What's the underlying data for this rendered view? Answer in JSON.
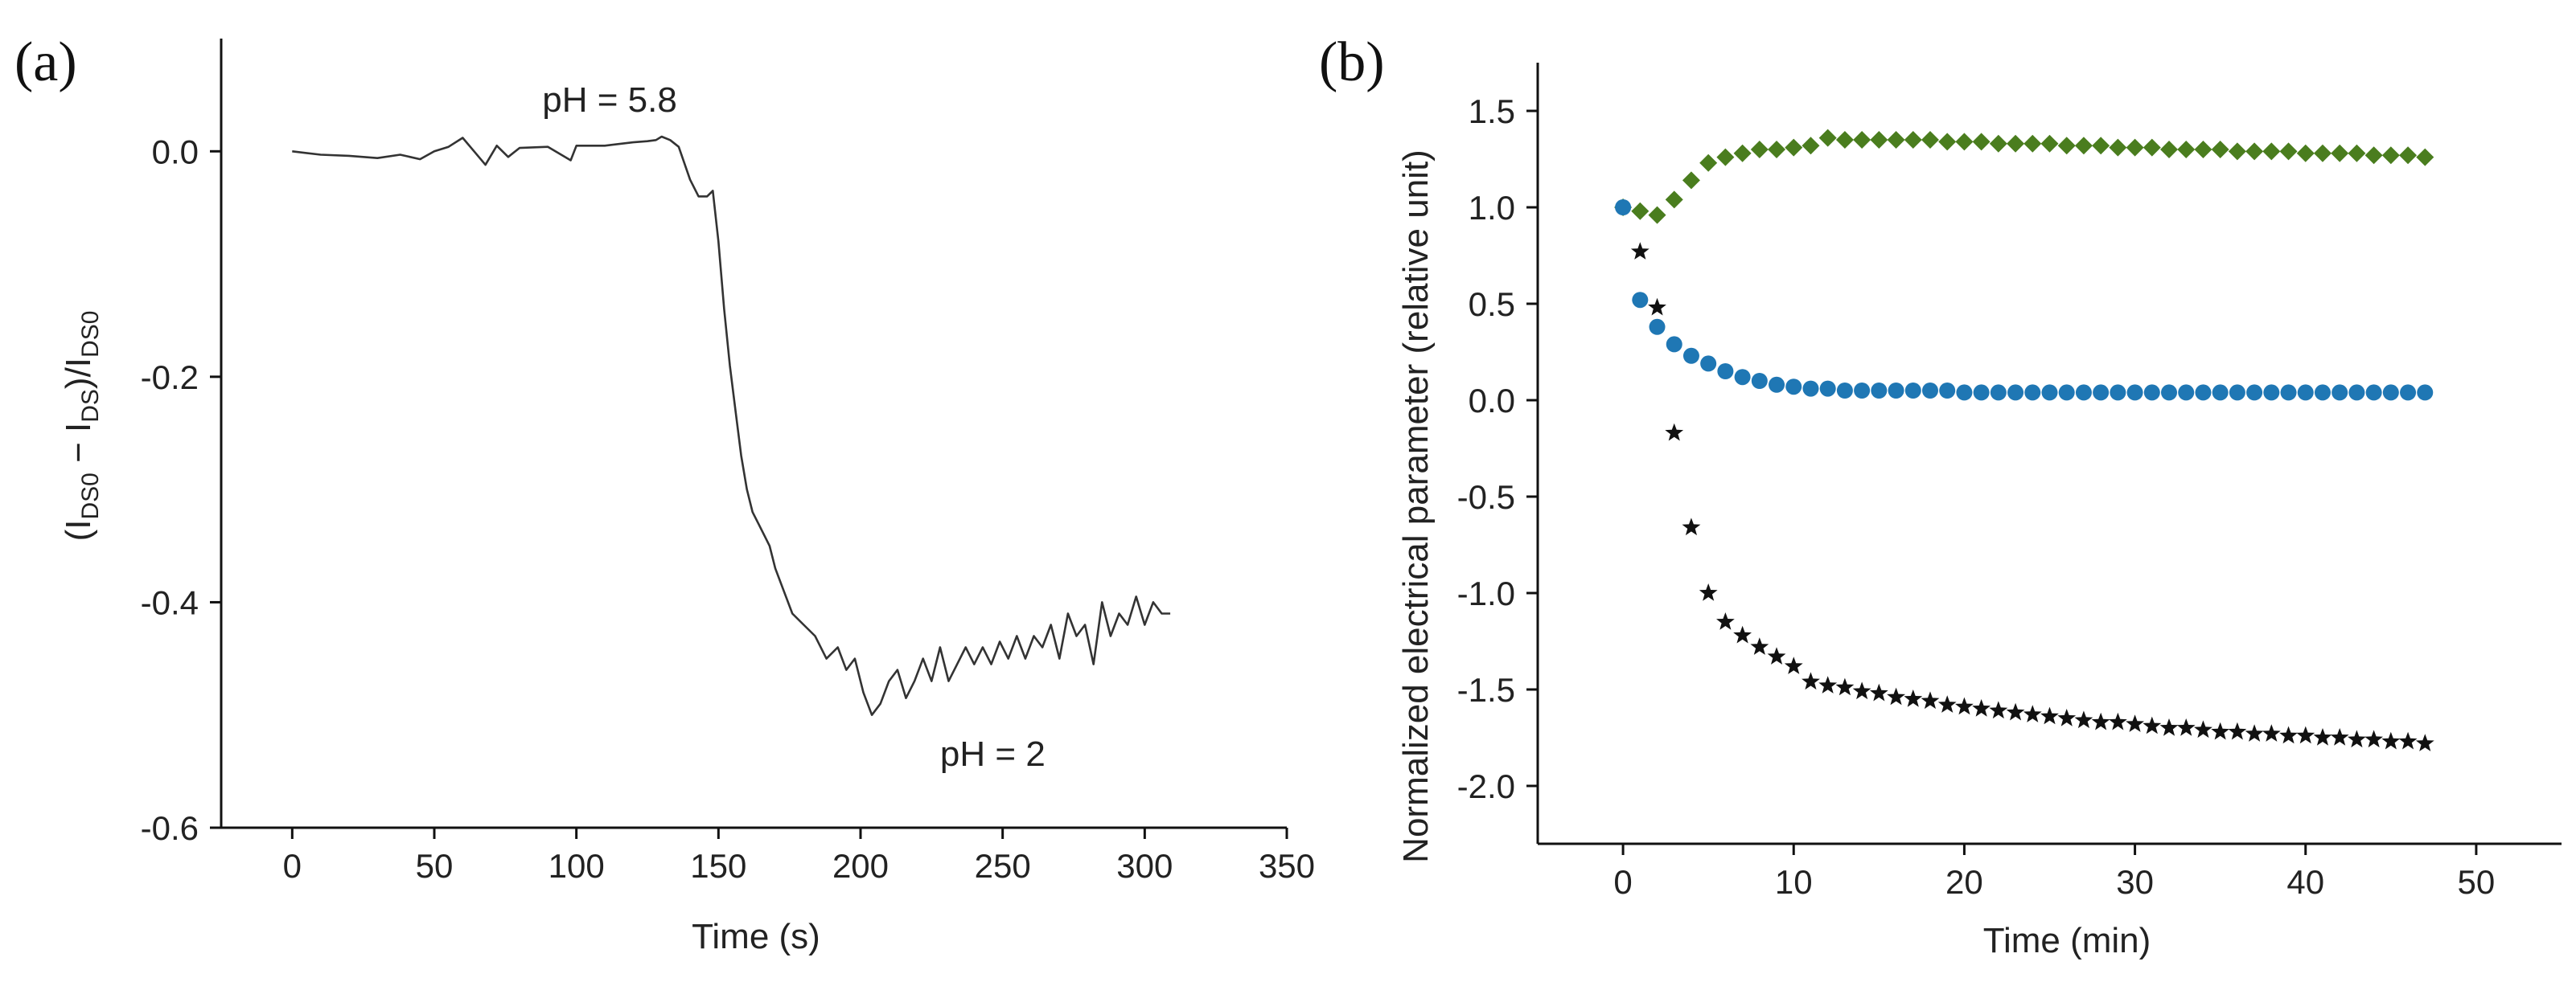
{
  "chart_data": [
    {
      "panel": "(a)",
      "type": "line",
      "title": "",
      "xlabel": "Time (s)",
      "ylabel_parts": [
        "(I",
        "DS0",
        " − I",
        "DS",
        ")/I",
        "DS0"
      ],
      "xlim": [
        -25,
        350
      ],
      "ylim": [
        -0.6,
        0.1
      ],
      "xticks": [
        0,
        50,
        100,
        150,
        200,
        250,
        300,
        350
      ],
      "yticks": [
        0.0,
        -0.2,
        -0.4,
        -0.6
      ],
      "ytick_labels": [
        "0.0",
        "-0.2",
        "-0.4",
        "-0.6"
      ],
      "grid": false,
      "line_color": "#333333",
      "annotations": [
        {
          "text": "pH = 5.8",
          "x": 88,
          "y": 0.045,
          "color": "#111111"
        },
        {
          "text": "pH = 2",
          "x": 228,
          "y": -0.535,
          "color": "#ff0000"
        }
      ],
      "series": [
        {
          "name": "response",
          "x": [
            0,
            10,
            20,
            30,
            38,
            45,
            50,
            55,
            60,
            64,
            68,
            72,
            76,
            80,
            90,
            98,
            100,
            110,
            120,
            125,
            128,
            130,
            133,
            136,
            140,
            143,
            146,
            148,
            150,
            152,
            154,
            156,
            158,
            160,
            162,
            164,
            166,
            168,
            170,
            173,
            176,
            180,
            184,
            188,
            192,
            195,
            198,
            201,
            204,
            207,
            210,
            213,
            216,
            219,
            222,
            225,
            228,
            231,
            234,
            237,
            240,
            243,
            246,
            249,
            252,
            255,
            258,
            261,
            264,
            267,
            270,
            273,
            276,
            279,
            282,
            285,
            288,
            291,
            294,
            297,
            300,
            303,
            306,
            309
          ],
          "y": [
            0.0,
            -0.003,
            -0.004,
            -0.006,
            -0.003,
            -0.007,
            0.0,
            0.004,
            0.012,
            0.0,
            -0.012,
            0.005,
            -0.005,
            0.003,
            0.004,
            -0.008,
            0.005,
            0.005,
            0.008,
            0.009,
            0.01,
            0.013,
            0.01,
            0.004,
            -0.025,
            -0.04,
            -0.04,
            -0.035,
            -0.08,
            -0.14,
            -0.19,
            -0.23,
            -0.27,
            -0.3,
            -0.32,
            -0.33,
            -0.34,
            -0.35,
            -0.37,
            -0.39,
            -0.41,
            -0.42,
            -0.43,
            -0.45,
            -0.44,
            -0.46,
            -0.45,
            -0.48,
            -0.5,
            -0.49,
            -0.47,
            -0.46,
            -0.485,
            -0.47,
            -0.45,
            -0.47,
            -0.44,
            -0.47,
            -0.455,
            -0.44,
            -0.455,
            -0.44,
            -0.455,
            -0.435,
            -0.45,
            -0.43,
            -0.45,
            -0.43,
            -0.44,
            -0.42,
            -0.45,
            -0.41,
            -0.43,
            -0.42,
            -0.455,
            -0.4,
            -0.43,
            -0.41,
            -0.42,
            -0.395,
            -0.42,
            -0.4,
            -0.41,
            -0.41
          ]
        }
      ]
    },
    {
      "panel": "(b)",
      "type": "scatter",
      "title": "",
      "xlabel": "Time (min)",
      "ylabel": "Normalized electrical parameter (relative unit)",
      "xlim": [
        -5,
        55
      ],
      "ylim": [
        -2.3,
        1.75
      ],
      "xticks": [
        0,
        10,
        20,
        30,
        40,
        50
      ],
      "yticks": [
        1.5,
        1.0,
        0.5,
        0.0,
        -0.5,
        -1.0,
        -1.5,
        -2.0
      ],
      "ytick_labels": [
        "1.5",
        "1.0",
        "0.5",
        "0.0",
        "-0.5",
        "-1.0",
        "-1.5",
        "-2.0"
      ],
      "grid": false,
      "series": [
        {
          "name": "green diamonds",
          "marker": "diamond",
          "color": "#4a7d1e",
          "x": [
            0,
            1,
            2,
            3,
            4,
            5,
            6,
            7,
            8,
            9,
            10,
            11,
            12,
            13,
            14,
            15,
            16,
            17,
            18,
            19,
            20,
            21,
            22,
            23,
            24,
            25,
            26,
            27,
            28,
            29,
            30,
            31,
            32,
            33,
            34,
            35,
            36,
            37,
            38,
            39,
            40,
            41,
            42,
            43,
            44,
            45,
            46,
            47
          ],
          "y": [
            1.0,
            0.98,
            0.96,
            1.04,
            1.14,
            1.23,
            1.26,
            1.28,
            1.3,
            1.3,
            1.31,
            1.32,
            1.36,
            1.35,
            1.35,
            1.35,
            1.35,
            1.35,
            1.35,
            1.34,
            1.34,
            1.34,
            1.33,
            1.33,
            1.33,
            1.33,
            1.32,
            1.32,
            1.32,
            1.31,
            1.31,
            1.31,
            1.3,
            1.3,
            1.3,
            1.3,
            1.29,
            1.29,
            1.29,
            1.29,
            1.28,
            1.28,
            1.28,
            1.28,
            1.27,
            1.27,
            1.27,
            1.26
          ]
        },
        {
          "name": "blue circles",
          "marker": "circle",
          "color": "#1f77b4",
          "x": [
            0,
            1,
            2,
            3,
            4,
            5,
            6,
            7,
            8,
            9,
            10,
            11,
            12,
            13,
            14,
            15,
            16,
            17,
            18,
            19,
            20,
            21,
            22,
            23,
            24,
            25,
            26,
            27,
            28,
            29,
            30,
            31,
            32,
            33,
            34,
            35,
            36,
            37,
            38,
            39,
            40,
            41,
            42,
            43,
            44,
            45,
            46,
            47
          ],
          "y": [
            1.0,
            0.52,
            0.38,
            0.29,
            0.23,
            0.19,
            0.15,
            0.12,
            0.1,
            0.08,
            0.07,
            0.06,
            0.06,
            0.05,
            0.05,
            0.05,
            0.05,
            0.05,
            0.05,
            0.05,
            0.04,
            0.04,
            0.04,
            0.04,
            0.04,
            0.04,
            0.04,
            0.04,
            0.04,
            0.04,
            0.04,
            0.04,
            0.04,
            0.04,
            0.04,
            0.04,
            0.04,
            0.04,
            0.04,
            0.04,
            0.04,
            0.04,
            0.04,
            0.04,
            0.04,
            0.04,
            0.04,
            0.04
          ]
        },
        {
          "name": "black stars",
          "marker": "star",
          "color": "#111111",
          "x": [
            1,
            2,
            3,
            4,
            5,
            6,
            7,
            8,
            9,
            10,
            11,
            12,
            13,
            14,
            15,
            16,
            17,
            18,
            19,
            20,
            21,
            22,
            23,
            24,
            25,
            26,
            27,
            28,
            29,
            30,
            31,
            32,
            33,
            34,
            35,
            36,
            37,
            38,
            39,
            40,
            41,
            42,
            43,
            44,
            45,
            46,
            47
          ],
          "y": [
            0.77,
            0.48,
            -0.17,
            -0.66,
            -1.0,
            -1.15,
            -1.22,
            -1.28,
            -1.33,
            -1.38,
            -1.46,
            -1.48,
            -1.49,
            -1.51,
            -1.52,
            -1.54,
            -1.55,
            -1.56,
            -1.58,
            -1.59,
            -1.6,
            -1.61,
            -1.62,
            -1.63,
            -1.64,
            -1.65,
            -1.66,
            -1.67,
            -1.67,
            -1.68,
            -1.69,
            -1.7,
            -1.7,
            -1.71,
            -1.72,
            -1.72,
            -1.73,
            -1.73,
            -1.74,
            -1.74,
            -1.75,
            -1.75,
            -1.76,
            -1.76,
            -1.77,
            -1.77,
            -1.78
          ]
        }
      ]
    }
  ]
}
